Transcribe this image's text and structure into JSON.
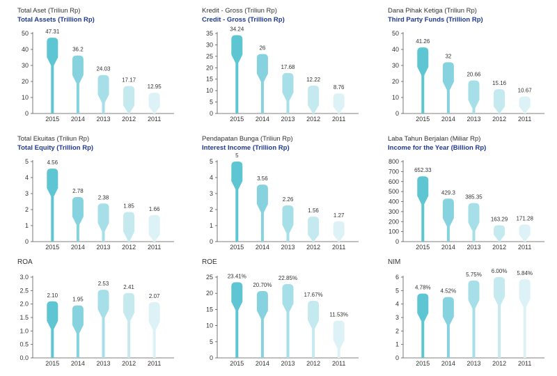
{
  "palette": [
    "#5ec5d3",
    "#86d3df",
    "#a6dfe8",
    "#c4e9ef",
    "#ddf2f6"
  ],
  "chart_data": [
    {
      "type": "bar",
      "title_id": "Total Aset (Triliun Rp)",
      "title_en": "Total Assets (Trillion Rp)",
      "categories": [
        "2015",
        "2014",
        "2013",
        "2012",
        "2011"
      ],
      "values": [
        47.31,
        36.2,
        24.03,
        17.17,
        12.95
      ],
      "labels": [
        "47.31",
        "36.2",
        "24.03",
        "17.17",
        "12.95"
      ],
      "ylim": [
        0,
        50
      ],
      "yticks": [
        0,
        10,
        20,
        30,
        40,
        50
      ],
      "ytick_labels": [
        "0",
        "10",
        "20",
        "30",
        "40",
        "50"
      ]
    },
    {
      "type": "bar",
      "title_id": "Kredit - Gross (Triliun Rp)",
      "title_en": "Credit - Gross (Trillion Rp)",
      "categories": [
        "2015",
        "2014",
        "2013",
        "2012",
        "2011"
      ],
      "values": [
        34.24,
        26,
        17.68,
        12.22,
        8.76
      ],
      "labels": [
        "34.24",
        "26",
        "17.68",
        "12.22",
        "8.76"
      ],
      "ylim": [
        0,
        35
      ],
      "yticks": [
        0,
        5,
        10,
        15,
        20,
        25,
        30,
        35
      ],
      "ytick_labels": [
        "0",
        "5",
        "10",
        "15",
        "20",
        "25",
        "30",
        "35"
      ]
    },
    {
      "type": "bar",
      "title_id": "Dana Pihak Ketiga (Triliun Rp)",
      "title_en": "Third Party Funds (Trillion Rp)",
      "categories": [
        "2015",
        "2014",
        "2013",
        "2012",
        "2011"
      ],
      "values": [
        41.26,
        32,
        20.66,
        15.16,
        10.67
      ],
      "labels": [
        "41.26",
        "32",
        "20.66",
        "15.16",
        "10.67"
      ],
      "ylim": [
        0,
        50
      ],
      "yticks": [
        0,
        10,
        20,
        30,
        40,
        50
      ],
      "ytick_labels": [
        "0",
        "10",
        "20",
        "30",
        "40",
        "50"
      ]
    },
    {
      "type": "bar",
      "title_id": "Total Ekuitas (Triliun Rp)",
      "title_en": "Total Equity (Trillion Rp)",
      "categories": [
        "2015",
        "2014",
        "2013",
        "2012",
        "2011"
      ],
      "values": [
        4.56,
        2.78,
        2.38,
        1.85,
        1.66
      ],
      "labels": [
        "4.56",
        "2.78",
        "2.38",
        "1.85",
        "1.66"
      ],
      "ylim": [
        0,
        5
      ],
      "yticks": [
        0,
        1,
        2,
        3,
        4,
        5
      ],
      "ytick_labels": [
        "0",
        "1",
        "2",
        "3",
        "4",
        "5"
      ]
    },
    {
      "type": "bar",
      "title_id": "Pendapatan Bunga (Triliun Rp)",
      "title_en": "Interest Income (Trillion Rp)",
      "categories": [
        "2015",
        "2014",
        "2013",
        "2012",
        "2011"
      ],
      "values": [
        5,
        3.56,
        2.26,
        1.56,
        1.27
      ],
      "labels": [
        "5",
        "3.56",
        "2.26",
        "1.56",
        "1.27"
      ],
      "ylim": [
        0,
        5
      ],
      "yticks": [
        0,
        1,
        2,
        3,
        4,
        5
      ],
      "ytick_labels": [
        "0",
        "1",
        "2",
        "3",
        "4",
        "5"
      ]
    },
    {
      "type": "bar",
      "title_id": "Laba Tahun Berjalan (Miliar Rp)",
      "title_en": "Income for the Year (Billion Rp)",
      "categories": [
        "2015",
        "2014",
        "2013",
        "2012",
        "2011"
      ],
      "values": [
        652.33,
        429.3,
        385.35,
        163.29,
        171.28
      ],
      "labels": [
        "652.33",
        "429.3",
        "385.35",
        "163.29",
        "171.28"
      ],
      "ylim": [
        0,
        800
      ],
      "yticks": [
        0,
        100,
        200,
        300,
        400,
        500,
        600,
        700,
        800
      ],
      "ytick_labels": [
        "0",
        "100",
        "200",
        "300",
        "400",
        "500",
        "600",
        "700",
        "800"
      ]
    },
    {
      "type": "bar",
      "title_id": "",
      "title_en": "",
      "title": "ROA",
      "categories": [
        "2015",
        "2014",
        "2013",
        "2012",
        "2011"
      ],
      "values": [
        2.1,
        1.95,
        2.53,
        2.41,
        2.07
      ],
      "labels": [
        "2.10",
        "1.95",
        "2.53",
        "2.41",
        "2.07"
      ],
      "ylim": [
        0,
        3.0
      ],
      "yticks": [
        0,
        0.5,
        1.0,
        1.5,
        2.0,
        2.5,
        3.0
      ],
      "ytick_labels": [
        "0.0",
        "0.5",
        "1.0",
        "1.5",
        "2.0",
        "2.5",
        "3.0"
      ]
    },
    {
      "type": "bar",
      "title_id": "",
      "title_en": "",
      "title": "ROE",
      "categories": [
        "2015",
        "2014",
        "2013",
        "2012",
        "2011"
      ],
      "values": [
        23.41,
        20.7,
        22.85,
        17.67,
        11.53
      ],
      "labels": [
        "23.41%",
        "20.70%",
        "22.85%",
        "17.67%",
        "11.53%"
      ],
      "ylim": [
        0,
        25
      ],
      "yticks": [
        0,
        5,
        10,
        15,
        20,
        25
      ],
      "ytick_labels": [
        "0",
        "5",
        "10",
        "15",
        "20",
        "25"
      ]
    },
    {
      "type": "bar",
      "title_id": "",
      "title_en": "",
      "title": "NIM",
      "categories": [
        "2015",
        "2014",
        "2013",
        "2012",
        "2011"
      ],
      "values": [
        4.78,
        4.52,
        5.75,
        6.0,
        5.84
      ],
      "labels": [
        "4.78%",
        "4.52%",
        "5.75%",
        "6.00%",
        "5.84%"
      ],
      "ylim": [
        0,
        6
      ],
      "yticks": [
        0,
        1,
        2,
        3,
        4,
        5,
        6
      ],
      "ytick_labels": [
        "0",
        "1",
        "2",
        "3",
        "4",
        "5",
        "6"
      ]
    }
  ]
}
